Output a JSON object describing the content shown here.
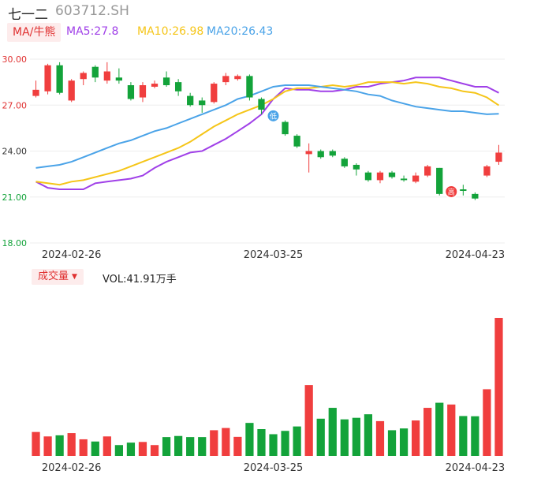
{
  "header": {
    "name": "七一二",
    "code": "603712.SH"
  },
  "ma_legend": {
    "mode": "MA/牛熊",
    "ma5": "MA5:27.8",
    "ma10": "MA10:26.98",
    "ma20": "MA20:26.43"
  },
  "volume_legend": {
    "mode": "成交量",
    "value": "VOL:41.91万手"
  },
  "colors": {
    "up": "#f03e3e",
    "down": "#13a33a",
    "ma5": "#a040e8",
    "ma10": "#f5c518",
    "ma20": "#4aa3e8",
    "axis_text_red": "#e03030",
    "axis_text_green": "#13a33a"
  },
  "chart_data": [
    {
      "type": "candlestick",
      "y_ticks": [
        "30.00",
        "27.00",
        "24.00",
        "21.00",
        "18.00"
      ],
      "ylim": [
        18.0,
        30.0
      ],
      "x_tick_labels": [
        "2024-02-26",
        "2024-03-25",
        "2024-04-23"
      ],
      "markers": [
        {
          "label": "低",
          "x": 20,
          "color": "#4aa3e8"
        },
        {
          "label": "高",
          "x": 35,
          "color": "#f03e3e"
        }
      ],
      "candles": [
        {
          "o": 27.6,
          "h": 28.6,
          "l": 27.5,
          "c": 28.0
        },
        {
          "o": 27.9,
          "h": 29.7,
          "l": 27.7,
          "c": 29.6
        },
        {
          "o": 29.6,
          "h": 29.8,
          "l": 27.7,
          "c": 27.8
        },
        {
          "o": 27.3,
          "h": 28.7,
          "l": 27.2,
          "c": 28.6
        },
        {
          "o": 28.7,
          "h": 29.2,
          "l": 28.3,
          "c": 29.1
        },
        {
          "o": 29.5,
          "h": 29.6,
          "l": 28.5,
          "c": 28.8
        },
        {
          "o": 28.6,
          "h": 29.8,
          "l": 28.4,
          "c": 29.2
        },
        {
          "o": 28.8,
          "h": 29.4,
          "l": 28.4,
          "c": 28.6
        },
        {
          "o": 28.3,
          "h": 28.5,
          "l": 27.3,
          "c": 27.4
        },
        {
          "o": 27.5,
          "h": 28.5,
          "l": 27.2,
          "c": 28.3
        },
        {
          "o": 28.2,
          "h": 28.6,
          "l": 28.1,
          "c": 28.4
        },
        {
          "o": 28.8,
          "h": 29.2,
          "l": 28.2,
          "c": 28.3
        },
        {
          "o": 28.5,
          "h": 28.7,
          "l": 27.6,
          "c": 27.9
        },
        {
          "o": 27.6,
          "h": 27.8,
          "l": 26.9,
          "c": 27.0
        },
        {
          "o": 27.3,
          "h": 27.5,
          "l": 26.5,
          "c": 27.0
        },
        {
          "o": 27.2,
          "h": 28.5,
          "l": 27.1,
          "c": 28.4
        },
        {
          "o": 28.5,
          "h": 29.1,
          "l": 28.3,
          "c": 28.9
        },
        {
          "o": 28.7,
          "h": 29.0,
          "l": 28.6,
          "c": 28.9
        },
        {
          "o": 28.9,
          "h": 29.0,
          "l": 27.3,
          "c": 27.5
        },
        {
          "o": 27.4,
          "h": 27.5,
          "l": 26.4,
          "c": 26.7
        },
        {
          "o": 26.5,
          "h": 26.7,
          "l": 25.9,
          "c": 25.9
        },
        {
          "o": 25.9,
          "h": 26.0,
          "l": 25.0,
          "c": 25.1
        },
        {
          "o": 25.0,
          "h": 25.1,
          "l": 24.2,
          "c": 24.3
        },
        {
          "o": 23.8,
          "h": 24.5,
          "l": 22.6,
          "c": 24.0
        },
        {
          "o": 24.0,
          "h": 24.1,
          "l": 23.5,
          "c": 23.6
        },
        {
          "o": 24.0,
          "h": 24.1,
          "l": 23.6,
          "c": 23.7
        },
        {
          "o": 23.5,
          "h": 23.6,
          "l": 22.9,
          "c": 23.0
        },
        {
          "o": 23.1,
          "h": 23.2,
          "l": 22.4,
          "c": 22.8
        },
        {
          "o": 22.6,
          "h": 22.7,
          "l": 22.0,
          "c": 22.1
        },
        {
          "o": 22.1,
          "h": 22.7,
          "l": 21.9,
          "c": 22.6
        },
        {
          "o": 22.6,
          "h": 22.7,
          "l": 22.2,
          "c": 22.3
        },
        {
          "o": 22.2,
          "h": 22.4,
          "l": 22.0,
          "c": 22.1
        },
        {
          "o": 22.0,
          "h": 22.6,
          "l": 21.9,
          "c": 22.4
        },
        {
          "o": 22.4,
          "h": 23.1,
          "l": 22.3,
          "c": 23.0
        },
        {
          "o": 22.9,
          "h": 22.9,
          "l": 21.1,
          "c": 21.2
        },
        {
          "o": 21.2,
          "h": 21.6,
          "l": 21.1,
          "c": 21.5
        },
        {
          "o": 21.5,
          "h": 21.8,
          "l": 21.1,
          "c": 21.4
        },
        {
          "o": 21.2,
          "h": 21.3,
          "l": 20.8,
          "c": 20.9
        },
        {
          "o": 22.4,
          "h": 23.1,
          "l": 22.3,
          "c": 23.0
        },
        {
          "o": 23.3,
          "h": 24.4,
          "l": 23.1,
          "c": 23.9
        }
      ],
      "ma_series": [
        {
          "name": "MA5",
          "values": [
            22.0,
            21.6,
            21.5,
            21.5,
            21.5,
            21.9,
            22.0,
            22.1,
            22.2,
            22.4,
            22.9,
            23.3,
            23.6,
            23.9,
            24.0,
            24.4,
            24.8,
            25.3,
            25.8,
            26.4,
            27.4,
            28.1,
            28.0,
            28.0,
            27.9,
            27.9,
            28.0,
            28.2,
            28.2,
            28.4,
            28.5,
            28.6,
            28.8,
            28.8,
            28.8,
            28.6,
            28.4,
            28.2,
            28.2,
            27.8
          ]
        },
        {
          "name": "MA10",
          "values": [
            22.0,
            21.9,
            21.8,
            22.0,
            22.1,
            22.3,
            22.5,
            22.7,
            23.0,
            23.3,
            23.6,
            23.9,
            24.2,
            24.6,
            25.1,
            25.6,
            26.0,
            26.4,
            26.7,
            27.0,
            27.4,
            27.9,
            28.1,
            28.1,
            28.2,
            28.3,
            28.2,
            28.3,
            28.5,
            28.5,
            28.5,
            28.4,
            28.5,
            28.4,
            28.2,
            28.1,
            27.9,
            27.8,
            27.5,
            26.98
          ]
        },
        {
          "name": "MA20",
          "values": [
            22.9,
            23.0,
            23.1,
            23.3,
            23.6,
            23.9,
            24.2,
            24.5,
            24.7,
            25.0,
            25.3,
            25.5,
            25.8,
            26.1,
            26.4,
            26.7,
            27.0,
            27.4,
            27.6,
            27.9,
            28.2,
            28.3,
            28.3,
            28.3,
            28.2,
            28.1,
            28.0,
            27.9,
            27.7,
            27.6,
            27.3,
            27.1,
            26.9,
            26.8,
            26.7,
            26.6,
            26.6,
            26.5,
            26.4,
            26.43
          ]
        }
      ]
    },
    {
      "type": "bar",
      "x_tick_labels": [
        "2024-02-26",
        "2024-03-25",
        "2024-04-23"
      ],
      "values": [
        10.8,
        8.8,
        9.3,
        10.3,
        7.5,
        6.5,
        8.8,
        4.9,
        6.0,
        6.3,
        4.9,
        8.5,
        9.0,
        8.5,
        8.5,
        11.6,
        12.6,
        8.6,
        14.9,
        12.1,
        9.8,
        11.3,
        13.3,
        32.0,
        16.8,
        21.7,
        16.5,
        17.2,
        18.8,
        15.7,
        11.6,
        12.4,
        16.0,
        21.7,
        24.0,
        23.2,
        18.0,
        17.9,
        30.1,
        62.3
      ]
    }
  ]
}
